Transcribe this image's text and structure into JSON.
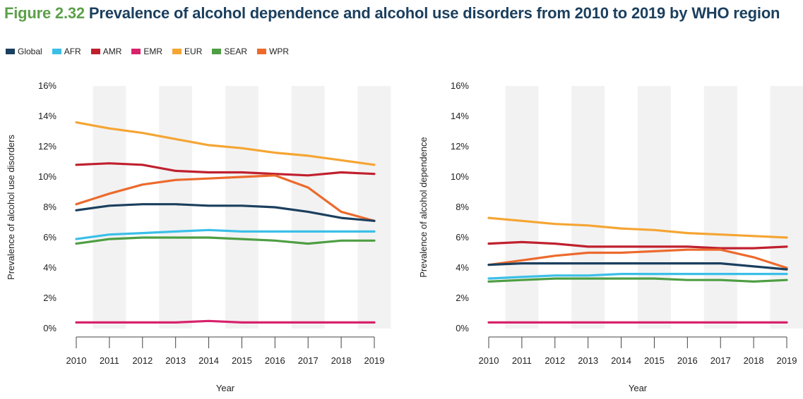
{
  "figure": {
    "number": "Figure 2.32",
    "title": "Prevalence of alcohol dependence and alcohol use disorders from 2010 to 2019 by WHO region"
  },
  "colors": {
    "Global": "#1b3f5e",
    "AFR": "#3bbfe8",
    "AMR": "#c0202e",
    "EMR": "#d8226b",
    "EUR": "#f5a533",
    "SEAR": "#4e9e43",
    "WPR": "#ec6a2c"
  },
  "legend": [
    "Global",
    "AFR",
    "AMR",
    "EMR",
    "EUR",
    "SEAR",
    "WPR"
  ],
  "chart_data": [
    {
      "type": "line",
      "xlabel": "Year",
      "ylabel": "Prevalence of alcohol use disorders",
      "ylim": [
        0,
        16
      ],
      "yticks": [
        "0%",
        "2%",
        "4%",
        "6%",
        "8%",
        "10%",
        "12%",
        "14%",
        "16%"
      ],
      "x": [
        "2010",
        "2011",
        "2012",
        "2013",
        "2014",
        "2015",
        "2016",
        "2017",
        "2018",
        "2019"
      ],
      "series": [
        {
          "name": "EUR",
          "values": [
            13.6,
            13.2,
            12.9,
            12.5,
            12.1,
            11.9,
            11.6,
            11.4,
            11.1,
            10.8
          ]
        },
        {
          "name": "AMR",
          "values": [
            10.8,
            10.9,
            10.8,
            10.4,
            10.3,
            10.3,
            10.2,
            10.1,
            10.3,
            10.2
          ]
        },
        {
          "name": "WPR",
          "values": [
            8.2,
            8.9,
            9.5,
            9.8,
            9.9,
            10.0,
            10.1,
            9.3,
            7.7,
            7.1
          ]
        },
        {
          "name": "Global",
          "values": [
            7.8,
            8.1,
            8.2,
            8.2,
            8.1,
            8.1,
            8.0,
            7.7,
            7.3,
            7.1
          ]
        },
        {
          "name": "AFR",
          "values": [
            5.9,
            6.2,
            6.3,
            6.4,
            6.5,
            6.4,
            6.4,
            6.4,
            6.4,
            6.4
          ]
        },
        {
          "name": "SEAR",
          "values": [
            5.6,
            5.9,
            6.0,
            6.0,
            6.0,
            5.9,
            5.8,
            5.6,
            5.8,
            5.8
          ]
        },
        {
          "name": "EMR",
          "values": [
            0.4,
            0.4,
            0.4,
            0.4,
            0.5,
            0.4,
            0.4,
            0.4,
            0.4,
            0.4
          ]
        }
      ]
    },
    {
      "type": "line",
      "xlabel": "Year",
      "ylabel": "Prevalence of alcohol dependence",
      "ylim": [
        0,
        16
      ],
      "yticks": [
        "0%",
        "2%",
        "4%",
        "6%",
        "8%",
        "10%",
        "12%",
        "14%",
        "16%"
      ],
      "x": [
        "2010",
        "2011",
        "2012",
        "2013",
        "2014",
        "2015",
        "2016",
        "2017",
        "2018",
        "2019"
      ],
      "series": [
        {
          "name": "EUR",
          "values": [
            7.3,
            7.1,
            6.9,
            6.8,
            6.6,
            6.5,
            6.3,
            6.2,
            6.1,
            6.0
          ]
        },
        {
          "name": "AMR",
          "values": [
            5.6,
            5.7,
            5.6,
            5.4,
            5.4,
            5.4,
            5.4,
            5.3,
            5.3,
            5.4
          ]
        },
        {
          "name": "WPR",
          "values": [
            4.2,
            4.5,
            4.8,
            5.0,
            5.0,
            5.1,
            5.2,
            5.2,
            4.7,
            4.0
          ]
        },
        {
          "name": "Global",
          "values": [
            4.2,
            4.3,
            4.3,
            4.3,
            4.3,
            4.3,
            4.3,
            4.3,
            4.1,
            3.9
          ]
        },
        {
          "name": "AFR",
          "values": [
            3.3,
            3.4,
            3.5,
            3.5,
            3.6,
            3.6,
            3.6,
            3.6,
            3.6,
            3.6
          ]
        },
        {
          "name": "SEAR",
          "values": [
            3.1,
            3.2,
            3.3,
            3.3,
            3.3,
            3.3,
            3.2,
            3.2,
            3.1,
            3.2
          ]
        },
        {
          "name": "EMR",
          "values": [
            0.4,
            0.4,
            0.4,
            0.4,
            0.4,
            0.4,
            0.4,
            0.4,
            0.4,
            0.4
          ]
        }
      ]
    }
  ]
}
